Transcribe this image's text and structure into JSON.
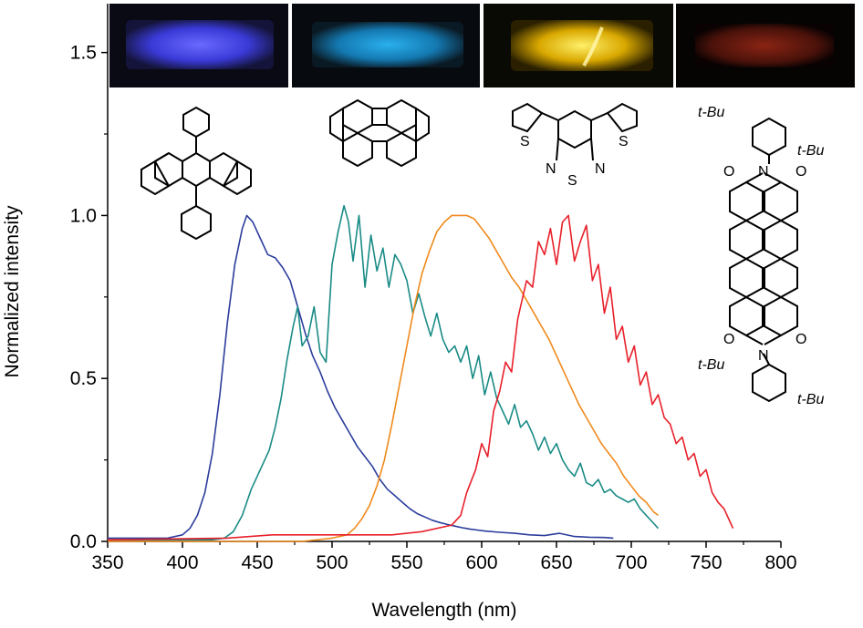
{
  "chart_data": {
    "type": "line",
    "xlabel": "Wavelength (nm)",
    "ylabel": "Normalized intensity",
    "xlim": [
      350,
      800
    ],
    "ylim": [
      0,
      1.65
    ],
    "xticks": [
      350,
      400,
      450,
      500,
      550,
      600,
      650,
      700,
      750,
      800
    ],
    "xtick_labels": [
      "350",
      "400",
      "450",
      "500",
      "550",
      "600",
      "650",
      "700",
      "750",
      "800"
    ],
    "yticks": [
      0.0,
      0.5,
      1.0,
      1.5
    ],
    "ytick_labels": [
      "0.0",
      "0.5",
      "1.0",
      "1.5"
    ],
    "series": [
      {
        "name": "9,10-diphenylanthracene",
        "color": "#2b3d9c",
        "x": [
          350,
          390,
          400,
          405,
          410,
          415,
          420,
          425,
          430,
          435,
          440,
          443,
          447,
          452,
          457,
          462,
          467,
          472,
          477,
          482,
          487,
          492,
          497,
          502,
          507,
          512,
          517,
          522,
          527,
          532,
          537,
          542,
          547,
          552,
          557,
          562,
          567,
          572,
          577,
          582,
          587,
          592,
          597,
          602,
          612,
          622,
          632,
          642,
          652,
          662,
          672,
          682,
          688
        ],
        "y": [
          0.01,
          0.01,
          0.02,
          0.04,
          0.08,
          0.15,
          0.27,
          0.45,
          0.67,
          0.85,
          0.96,
          1.0,
          0.98,
          0.93,
          0.88,
          0.87,
          0.84,
          0.8,
          0.72,
          0.64,
          0.57,
          0.52,
          0.46,
          0.41,
          0.37,
          0.33,
          0.29,
          0.26,
          0.23,
          0.19,
          0.16,
          0.14,
          0.12,
          0.1,
          0.085,
          0.075,
          0.065,
          0.058,
          0.052,
          0.047,
          0.042,
          0.038,
          0.035,
          0.032,
          0.028,
          0.025,
          0.02,
          0.018,
          0.025,
          0.015,
          0.013,
          0.012,
          0.01
        ]
      },
      {
        "name": "perylene",
        "color": "#1a8b86",
        "x": [
          350,
          420,
          428,
          434,
          440,
          446,
          452,
          458,
          462,
          466,
          470,
          474,
          477,
          480,
          484,
          488,
          492,
          496,
          500,
          504,
          508,
          511,
          514,
          518,
          522,
          526,
          530,
          534,
          538,
          542,
          546,
          550,
          554,
          558,
          562,
          566,
          570,
          574,
          578,
          582,
          586,
          590,
          594,
          598,
          602,
          606,
          610,
          614,
          618,
          622,
          626,
          630,
          634,
          638,
          642,
          646,
          650,
          654,
          658,
          662,
          666,
          670,
          674,
          678,
          682,
          686,
          690,
          694,
          698,
          702,
          706,
          710,
          714,
          718
        ],
        "y": [
          0.005,
          0.005,
          0.01,
          0.03,
          0.08,
          0.16,
          0.22,
          0.28,
          0.35,
          0.44,
          0.56,
          0.66,
          0.72,
          0.6,
          0.63,
          0.72,
          0.58,
          0.55,
          0.85,
          0.95,
          1.03,
          0.98,
          0.86,
          1.0,
          0.78,
          0.94,
          0.83,
          0.9,
          0.78,
          0.88,
          0.85,
          0.8,
          0.7,
          0.76,
          0.69,
          0.63,
          0.7,
          0.62,
          0.58,
          0.6,
          0.55,
          0.6,
          0.5,
          0.57,
          0.45,
          0.52,
          0.44,
          0.4,
          0.36,
          0.42,
          0.35,
          0.37,
          0.33,
          0.28,
          0.32,
          0.27,
          0.3,
          0.25,
          0.22,
          0.2,
          0.24,
          0.18,
          0.17,
          0.19,
          0.15,
          0.16,
          0.14,
          0.13,
          0.12,
          0.13,
          0.1,
          0.08,
          0.06,
          0.04
        ]
      },
      {
        "name": "4,7-di(thiophen-2-yl)benzothiadiazole",
        "color": "#f08a1c",
        "x": [
          350,
          480,
          500,
          510,
          515,
          520,
          525,
          530,
          535,
          540,
          545,
          550,
          555,
          560,
          565,
          570,
          575,
          580,
          585,
          590,
          595,
          600,
          605,
          610,
          615,
          620,
          625,
          630,
          635,
          640,
          645,
          650,
          655,
          660,
          665,
          670,
          675,
          680,
          685,
          690,
          695,
          700,
          705,
          710,
          715,
          718
        ],
        "y": [
          0.0,
          0.0,
          0.01,
          0.02,
          0.04,
          0.07,
          0.11,
          0.17,
          0.25,
          0.36,
          0.48,
          0.6,
          0.72,
          0.82,
          0.89,
          0.95,
          0.98,
          1.0,
          1.0,
          1.0,
          0.99,
          0.96,
          0.93,
          0.89,
          0.85,
          0.81,
          0.78,
          0.74,
          0.7,
          0.66,
          0.62,
          0.57,
          0.52,
          0.47,
          0.42,
          0.38,
          0.34,
          0.3,
          0.27,
          0.24,
          0.2,
          0.17,
          0.14,
          0.12,
          0.09,
          0.08
        ]
      },
      {
        "name": "perylene diimide",
        "color": "#e8202a",
        "x": [
          350,
          430,
          460,
          500,
          540,
          560,
          580,
          586,
          590,
          596,
          600,
          604,
          608,
          612,
          616,
          620,
          624,
          626,
          630,
          634,
          638,
          642,
          646,
          650,
          654,
          658,
          662,
          666,
          670,
          674,
          678,
          682,
          686,
          690,
          694,
          698,
          702,
          706,
          710,
          714,
          718,
          722,
          726,
          730,
          734,
          738,
          742,
          746,
          750,
          754,
          758,
          762,
          766,
          768
        ],
        "y": [
          0.005,
          0.01,
          0.02,
          0.02,
          0.02,
          0.03,
          0.05,
          0.08,
          0.15,
          0.22,
          0.3,
          0.26,
          0.4,
          0.46,
          0.55,
          0.52,
          0.68,
          0.72,
          0.8,
          0.78,
          0.92,
          0.88,
          0.96,
          0.85,
          0.98,
          1.0,
          0.86,
          0.92,
          0.97,
          0.8,
          0.85,
          0.7,
          0.78,
          0.62,
          0.66,
          0.55,
          0.6,
          0.48,
          0.52,
          0.42,
          0.45,
          0.38,
          0.36,
          0.3,
          0.32,
          0.25,
          0.27,
          0.2,
          0.22,
          0.15,
          0.12,
          0.1,
          0.06,
          0.04
        ]
      }
    ]
  },
  "structures": {
    "pdi_labels": [
      "t-Bu",
      "t-Bu",
      "t-Bu",
      "t-Bu"
    ],
    "pdi_atoms": [
      "N",
      "N",
      "O",
      "O",
      "O",
      "O"
    ],
    "btd_atoms": [
      "N",
      "N",
      "S",
      "S",
      "S"
    ]
  },
  "colors": {
    "photo_blue": "#3a3ad8",
    "photo_cyan": "#1a8fd0",
    "photo_yellow": "#f2c300",
    "photo_red": "#7a1a10"
  }
}
